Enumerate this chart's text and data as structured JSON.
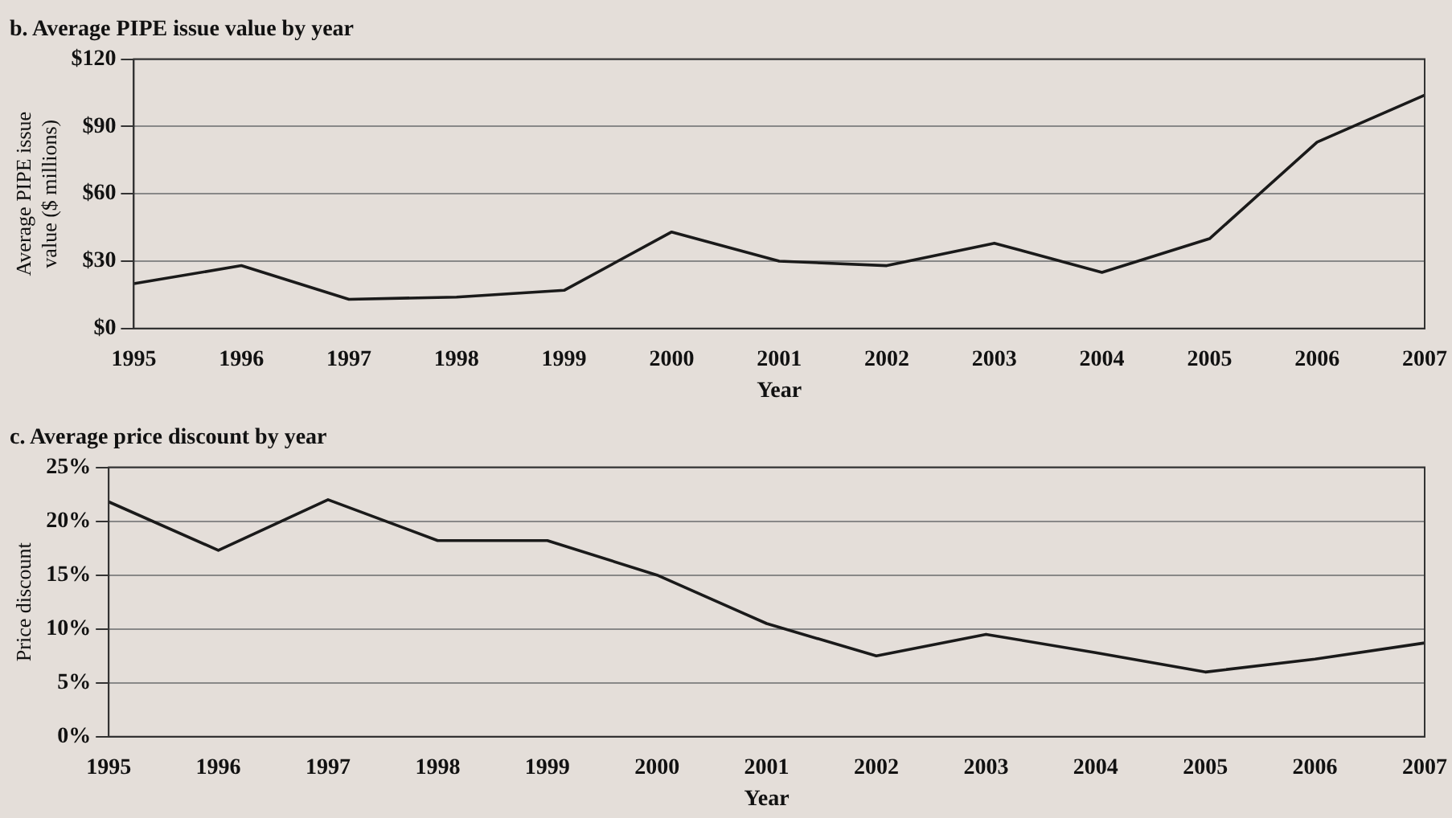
{
  "chart_data": [
    {
      "type": "line",
      "title": "b. Average PIPE issue value by year",
      "xlabel": "Year",
      "ylabel": "Average PIPE issue value ($ millions)",
      "categories": [
        "1995",
        "1996",
        "1997",
        "1998",
        "1999",
        "2000",
        "2001",
        "2002",
        "2003",
        "2004",
        "2005",
        "2006",
        "2007"
      ],
      "series": [
        {
          "color": "#1a1a1a",
          "values": [
            20,
            28,
            13,
            14,
            17,
            43,
            30,
            28,
            38,
            25,
            40,
            83,
            104
          ]
        }
      ],
      "ylim": [
        0,
        120
      ],
      "yticks": [
        {
          "value": 0,
          "label": "$0"
        },
        {
          "value": 30,
          "label": "$30"
        },
        {
          "value": 60,
          "label": "$60"
        },
        {
          "value": 90,
          "label": "$90"
        },
        {
          "value": 120,
          "label": "$120"
        }
      ],
      "grid": "y",
      "legend": false,
      "marker": "none",
      "line_style": "solid"
    },
    {
      "type": "line",
      "title": "c. Average price discount by year",
      "xlabel": "Year",
      "ylabel": "Price discount",
      "categories": [
        "1995",
        "1996",
        "1997",
        "1998",
        "1999",
        "2000",
        "2001",
        "2002",
        "2003",
        "2004",
        "2005",
        "2006",
        "2007"
      ],
      "series": [
        {
          "color": "#1a1a1a",
          "values": [
            21.8,
            17.3,
            22,
            18.2,
            18.2,
            15,
            10.5,
            7.5,
            9.5,
            7.8,
            6,
            7.2,
            8.7
          ]
        }
      ],
      "ylim": [
        0,
        25
      ],
      "yticks": [
        {
          "value": 0,
          "label": "0%"
        },
        {
          "value": 5,
          "label": "5%"
        },
        {
          "value": 10,
          "label": "10%"
        },
        {
          "value": 15,
          "label": "15%"
        },
        {
          "value": 20,
          "label": "20%"
        },
        {
          "value": 25,
          "label": "25%"
        }
      ],
      "grid": "y",
      "legend": false,
      "marker": "none",
      "line_style": "solid"
    }
  ]
}
